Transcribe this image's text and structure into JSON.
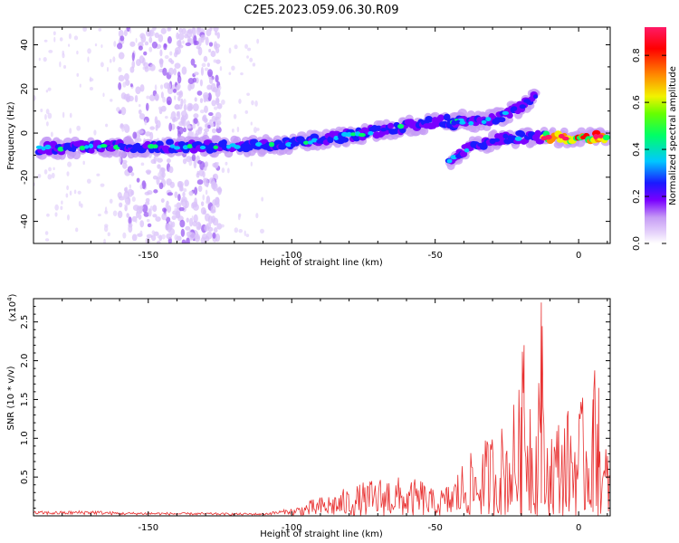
{
  "figure": {
    "title": "C2E5.2023.059.06.30.R09"
  },
  "chart_data": [
    {
      "type": "heatmap",
      "xlabel": "Height of straight line (km)",
      "ylabel": "Frequency (Hz)",
      "xlim": [
        -190,
        11
      ],
      "ylim": [
        -50,
        48
      ],
      "x_ticks": [
        -150,
        -100,
        -50,
        0
      ],
      "y_ticks": [
        40,
        20,
        0,
        -20,
        -40
      ],
      "colorbar": {
        "label": "Normalized spectral amplitude",
        "range": [
          0,
          0.92
        ],
        "ticks": [
          0.0,
          0.2,
          0.4,
          0.6,
          0.8
        ],
        "colormap": [
          "#ffffff",
          "#c69cf5",
          "#7a00ff",
          "#1a1aff",
          "#00c8ff",
          "#00ff66",
          "#f2f200",
          "#ff8800",
          "#ff0000",
          "#ff1a66"
        ]
      },
      "features": [
        {
          "name": "main-band",
          "points": [
            [
              -188,
              -7
            ],
            [
              -150,
              -6
            ],
            [
              -120,
              -6
            ],
            [
              -100,
              -5
            ],
            [
              -80,
              -1
            ],
            [
              -65,
              2
            ],
            [
              -50,
              5
            ],
            [
              -40,
              6
            ]
          ],
          "amplitude": 0.35
        },
        {
          "name": "branch-upper",
          "points": [
            [
              -45,
              4
            ],
            [
              -30,
              6
            ],
            [
              -20,
              12
            ],
            [
              -15,
              17
            ]
          ],
          "amplitude": 0.3
        },
        {
          "name": "branch-lower",
          "points": [
            [
              -45,
              -12
            ],
            [
              -35,
              -5
            ],
            [
              -25,
              -2
            ],
            [
              -12,
              -2
            ]
          ],
          "amplitude": 0.3
        },
        {
          "name": "right-band",
          "points": [
            [
              -12,
              -2
            ],
            [
              0,
              -2
            ],
            [
              10,
              -2
            ]
          ],
          "amplitude": 0.85
        },
        {
          "name": "noise-columns",
          "x_ranges": [
            [
              -160,
              -140
            ],
            [
              -140,
              -125
            ]
          ],
          "amplitude": 0.1
        }
      ]
    },
    {
      "type": "line",
      "xlabel": "Height of straight line (km)",
      "ylabel": "SNR (10 * v/v)",
      "y_scale_label": "(x10",
      "y_scale_exponent": "4",
      "xlim": [
        -190,
        11
      ],
      "ylim": [
        0,
        28000
      ],
      "x_ticks": [
        -150,
        -100,
        -50,
        0
      ],
      "y_ticks": [
        0.5,
        1.0,
        1.5,
        2.0,
        2.5
      ],
      "color": "#e83030",
      "series": [
        {
          "x": [
            -190,
            -180,
            -170,
            -160,
            -150,
            -140,
            -130,
            -120,
            -110,
            -100,
            -95,
            -90,
            -85,
            -80,
            -75,
            -70,
            -65,
            -60,
            -55,
            -50,
            -45,
            -40,
            -35,
            -30,
            -25,
            -20,
            -19,
            -15,
            -13,
            -12,
            -10,
            -5,
            0,
            3,
            5,
            7,
            8,
            9,
            11
          ],
          "y": [
            500,
            500,
            600,
            400,
            400,
            350,
            350,
            300,
            300,
            800,
            1500,
            2000,
            2500,
            3000,
            3500,
            4000,
            4500,
            3500,
            4000,
            2500,
            3500,
            6000,
            7000,
            9000,
            10000,
            14000,
            22000,
            10000,
            27500,
            8000,
            10000,
            11000,
            12000,
            12500,
            15000,
            16500,
            5000,
            7000,
            9000
          ]
        }
      ]
    }
  ]
}
